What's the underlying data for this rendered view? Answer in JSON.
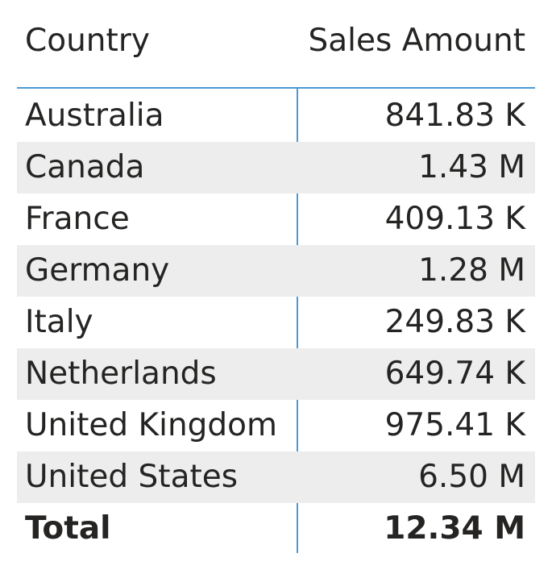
{
  "table": {
    "headers": {
      "country": "Country",
      "sales_amount": "Sales Amount"
    },
    "rows": [
      {
        "country": "Australia",
        "sales_amount": "841.83 K"
      },
      {
        "country": "Canada",
        "sales_amount": "1.43 M"
      },
      {
        "country": "France",
        "sales_amount": "409.13 K"
      },
      {
        "country": "Germany",
        "sales_amount": "1.28 M"
      },
      {
        "country": "Italy",
        "sales_amount": "249.83 K"
      },
      {
        "country": "Netherlands",
        "sales_amount": "649.74 K"
      },
      {
        "country": "United Kingdom",
        "sales_amount": "975.41 K"
      },
      {
        "country": "United States",
        "sales_amount": "6.50 M"
      }
    ],
    "total": {
      "label": "Total",
      "sales_amount": "12.34 M"
    }
  },
  "colors": {
    "grid_accent": "#4a9ad6",
    "banded_row": "#ededed",
    "text": "#252423"
  }
}
